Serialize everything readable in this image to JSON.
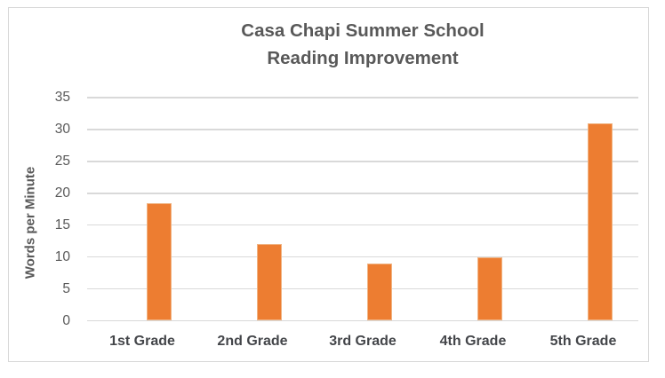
{
  "chart_data": {
    "type": "bar",
    "title": "Casa Chapi Summer School Reading Improvement",
    "title_lines": [
      "Casa Chapi Summer School",
      "Reading Improvement"
    ],
    "categories": [
      "1st Grade",
      "2nd Grade",
      "3rd Grade",
      "4th Grade",
      "5th Grade"
    ],
    "values": [
      18.5,
      12,
      9,
      10,
      31
    ],
    "series": [
      {
        "name": "Reading Improvement",
        "values": [
          18.5,
          12,
          9,
          10,
          31
        ]
      }
    ],
    "xlabel": "",
    "ylabel": "Words per Minute",
    "yticks": [
      0,
      5,
      10,
      15,
      20,
      25,
      30,
      35
    ],
    "ylim": [
      0,
      35
    ],
    "grid": true,
    "legend": false,
    "colors": {
      "bar": "#ED7D31",
      "bar_edge": "#F0B483",
      "gridline": "#D9D9D9",
      "title_text": "#595959",
      "tick_text": "#595959",
      "category_text": "#44464A",
      "frame_border": "#D8D8D8",
      "background": "#FFFFFF"
    }
  }
}
